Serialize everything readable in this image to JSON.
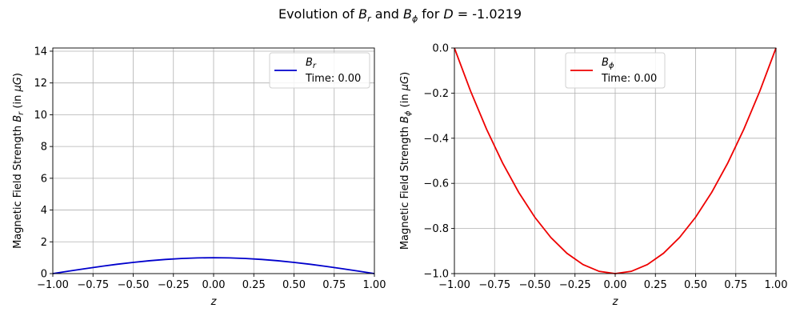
{
  "figure": {
    "title_prefix": "Evolution of ",
    "title_br": "B",
    "title_br_sub": "r",
    "title_and": " and ",
    "title_bphi": "B",
    "title_bphi_sub": "ϕ",
    "title_for": " for ",
    "title_d": "D",
    "title_eq_value": " = -1.0219"
  },
  "chart_data": [
    {
      "type": "line",
      "name": "br-panel",
      "xlabel": "z",
      "ylabel_prefix": "Magnetic Field Strength ",
      "ylabel_sym": "B",
      "ylabel_sub": "r",
      "ylabel_suffix": " (in ",
      "ylabel_unit": "μG",
      "ylabel_close": ")",
      "xlim": [
        -1.0,
        1.0
      ],
      "ylim": [
        0,
        14.2
      ],
      "xticks": [
        -1.0,
        -0.75,
        -0.5,
        -0.25,
        0.0,
        0.25,
        0.5,
        0.75,
        1.0
      ],
      "xtick_labels": [
        "−1.00",
        "−0.75",
        "−0.50",
        "−0.25",
        "0.00",
        "0.25",
        "0.50",
        "0.75",
        "1.00"
      ],
      "yticks": [
        0,
        2,
        4,
        6,
        8,
        10,
        12,
        14
      ],
      "ytick_labels": [
        "0",
        "2",
        "4",
        "6",
        "8",
        "10",
        "12",
        "14"
      ],
      "grid": true,
      "legend": {
        "placement": "upper-right",
        "series_label": "B",
        "series_sub": "r",
        "time_label": "Time: 0.00"
      },
      "series": [
        {
          "color": "#0000cc",
          "x": [
            -1.0,
            -0.9,
            -0.8,
            -0.7,
            -0.6,
            -0.5,
            -0.4,
            -0.3,
            -0.2,
            -0.1,
            0.0,
            0.1,
            0.2,
            0.3,
            0.4,
            0.5,
            0.6,
            0.7,
            0.8,
            0.9,
            1.0
          ],
          "y": [
            0.0,
            0.156,
            0.309,
            0.454,
            0.588,
            0.707,
            0.809,
            0.891,
            0.951,
            0.988,
            1.0,
            0.988,
            0.951,
            0.891,
            0.809,
            0.707,
            0.588,
            0.454,
            0.309,
            0.156,
            0.0
          ]
        }
      ]
    },
    {
      "type": "line",
      "name": "bphi-panel",
      "xlabel": "z",
      "ylabel_prefix": "Magnetic Field Strength ",
      "ylabel_sym": "B",
      "ylabel_sub": "ϕ",
      "ylabel_suffix": " (in ",
      "ylabel_unit": "μG",
      "ylabel_close": ")",
      "xlim": [
        -1.0,
        1.0
      ],
      "ylim": [
        -1.0,
        0.0
      ],
      "xticks": [
        -1.0,
        -0.75,
        -0.5,
        -0.25,
        0.0,
        0.25,
        0.5,
        0.75,
        1.0
      ],
      "xtick_labels": [
        "−1.00",
        "−0.75",
        "−0.50",
        "−0.25",
        "0.00",
        "0.25",
        "0.50",
        "0.75",
        "1.00"
      ],
      "yticks": [
        -1.0,
        -0.8,
        -0.6,
        -0.4,
        -0.2,
        0.0
      ],
      "ytick_labels": [
        "−1.0",
        "−0.8",
        "−0.6",
        "−0.4",
        "−0.2",
        "0.0"
      ],
      "grid": true,
      "legend": {
        "placement": "upper-center",
        "series_label": "B",
        "series_sub": "ϕ",
        "time_label": "Time: 0.00"
      },
      "series": [
        {
          "color": "#ee0000",
          "x": [
            -1.0,
            -0.9,
            -0.8,
            -0.7,
            -0.6,
            -0.5,
            -0.4,
            -0.3,
            -0.2,
            -0.1,
            0.0,
            0.1,
            0.2,
            0.3,
            0.4,
            0.5,
            0.6,
            0.7,
            0.8,
            0.9,
            1.0
          ],
          "y": [
            0.0,
            -0.19,
            -0.36,
            -0.51,
            -0.64,
            -0.75,
            -0.84,
            -0.91,
            -0.96,
            -0.99,
            -1.0,
            -0.99,
            -0.96,
            -0.91,
            -0.84,
            -0.75,
            -0.64,
            -0.51,
            -0.36,
            -0.19,
            0.0
          ]
        }
      ]
    }
  ]
}
